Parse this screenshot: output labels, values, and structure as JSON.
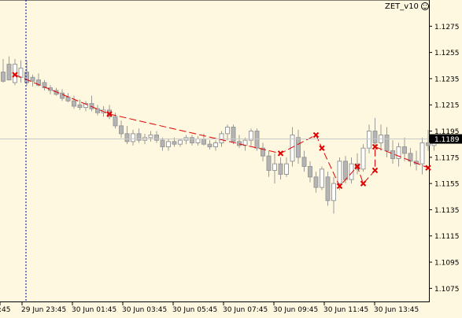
{
  "indicator": {
    "name": "ZET_v10",
    "icon": "smiley-icon"
  },
  "chart_data": {
    "type": "candlestick",
    "ylim": [
      1.1065,
      1.1295
    ],
    "y_ticks": [
      "1.1275",
      "1.1255",
      "1.1235",
      "1.1215",
      "1.1195",
      "1.1175",
      "1.1155",
      "1.1135",
      "1.1115",
      "1.1095",
      "1.1075"
    ],
    "current_price": "1.1189",
    "x_tick_labels": [
      ":45",
      "29 Jun 23:45",
      "30 Jun 01:45",
      "30 Jun 03:45",
      "30 Jun 05:45",
      "30 Jun 07:45",
      "30 Jun 09:45",
      "30 Jun 11:45",
      "30 Jun 13:45"
    ],
    "vertical_marker_index": 1,
    "candles": [
      {
        "o": 1.124,
        "h": 1.125,
        "l": 1.1232,
        "c": 1.1233
      },
      {
        "o": 1.1246,
        "h": 1.1252,
        "l": 1.1234,
        "c": 1.1234
      },
      {
        "o": 1.1232,
        "h": 1.125,
        "l": 1.123,
        "c": 1.1246
      },
      {
        "o": 1.1236,
        "h": 1.1249,
        "l": 1.1232,
        "c": 1.1243
      },
      {
        "o": 1.124,
        "h": 1.1249,
        "l": 1.123,
        "c": 1.1232
      },
      {
        "o": 1.1236,
        "h": 1.1238,
        "l": 1.1229,
        "c": 1.1233
      },
      {
        "o": 1.1234,
        "h": 1.1239,
        "l": 1.1229,
        "c": 1.123
      },
      {
        "o": 1.1232,
        "h": 1.1234,
        "l": 1.1226,
        "c": 1.1228
      },
      {
        "o": 1.1228,
        "h": 1.123,
        "l": 1.1223,
        "c": 1.1226
      },
      {
        "o": 1.1226,
        "h": 1.1228,
        "l": 1.1222,
        "c": 1.1223
      },
      {
        "o": 1.1224,
        "h": 1.1227,
        "l": 1.1218,
        "c": 1.122
      },
      {
        "o": 1.1221,
        "h": 1.1224,
        "l": 1.1217,
        "c": 1.1218
      },
      {
        "o": 1.1218,
        "h": 1.1222,
        "l": 1.1212,
        "c": 1.1214
      },
      {
        "o": 1.1215,
        "h": 1.1219,
        "l": 1.1211,
        "c": 1.1213
      },
      {
        "o": 1.1213,
        "h": 1.1218,
        "l": 1.121,
        "c": 1.1216
      },
      {
        "o": 1.1216,
        "h": 1.1222,
        "l": 1.121,
        "c": 1.1212
      },
      {
        "o": 1.1212,
        "h": 1.1215,
        "l": 1.1207,
        "c": 1.1209
      },
      {
        "o": 1.1209,
        "h": 1.1214,
        "l": 1.1206,
        "c": 1.1211
      },
      {
        "o": 1.1211,
        "h": 1.1215,
        "l": 1.1204,
        "c": 1.1206
      },
      {
        "o": 1.1206,
        "h": 1.1209,
        "l": 1.1197,
        "c": 1.1199
      },
      {
        "o": 1.1199,
        "h": 1.1203,
        "l": 1.119,
        "c": 1.1193
      },
      {
        "o": 1.1193,
        "h": 1.1199,
        "l": 1.1185,
        "c": 1.1187
      },
      {
        "o": 1.1187,
        "h": 1.1196,
        "l": 1.1184,
        "c": 1.1193
      },
      {
        "o": 1.1193,
        "h": 1.1197,
        "l": 1.1186,
        "c": 1.1188
      },
      {
        "o": 1.1188,
        "h": 1.1193,
        "l": 1.1185,
        "c": 1.119
      },
      {
        "o": 1.119,
        "h": 1.1195,
        "l": 1.1187,
        "c": 1.1192
      },
      {
        "o": 1.1192,
        "h": 1.1195,
        "l": 1.1186,
        "c": 1.1188
      },
      {
        "o": 1.1188,
        "h": 1.119,
        "l": 1.118,
        "c": 1.1183
      },
      {
        "o": 1.1183,
        "h": 1.1189,
        "l": 1.118,
        "c": 1.1187
      },
      {
        "o": 1.1187,
        "h": 1.119,
        "l": 1.1183,
        "c": 1.1185
      },
      {
        "o": 1.1185,
        "h": 1.1189,
        "l": 1.1183,
        "c": 1.1188
      },
      {
        "o": 1.1188,
        "h": 1.1192,
        "l": 1.1185,
        "c": 1.119
      },
      {
        "o": 1.119,
        "h": 1.1192,
        "l": 1.1184,
        "c": 1.1186
      },
      {
        "o": 1.1186,
        "h": 1.1191,
        "l": 1.1184,
        "c": 1.1189
      },
      {
        "o": 1.1189,
        "h": 1.1193,
        "l": 1.1184,
        "c": 1.1185
      },
      {
        "o": 1.1185,
        "h": 1.1188,
        "l": 1.1181,
        "c": 1.1183
      },
      {
        "o": 1.1183,
        "h": 1.1188,
        "l": 1.118,
        "c": 1.1186
      },
      {
        "o": 1.1186,
        "h": 1.1195,
        "l": 1.1183,
        "c": 1.1193
      },
      {
        "o": 1.1193,
        "h": 1.12,
        "l": 1.1188,
        "c": 1.1198
      },
      {
        "o": 1.1198,
        "h": 1.12,
        "l": 1.1185,
        "c": 1.1187
      },
      {
        "o": 1.1187,
        "h": 1.1192,
        "l": 1.1182,
        "c": 1.1184
      },
      {
        "o": 1.1184,
        "h": 1.119,
        "l": 1.118,
        "c": 1.1188
      },
      {
        "o": 1.1188,
        "h": 1.1197,
        "l": 1.1184,
        "c": 1.1195
      },
      {
        "o": 1.1195,
        "h": 1.1197,
        "l": 1.118,
        "c": 1.1182
      },
      {
        "o": 1.1182,
        "h": 1.1186,
        "l": 1.1172,
        "c": 1.1176
      },
      {
        "o": 1.1176,
        "h": 1.118,
        "l": 1.116,
        "c": 1.1165
      },
      {
        "o": 1.1165,
        "h": 1.1178,
        "l": 1.1155,
        "c": 1.117
      },
      {
        "o": 1.117,
        "h": 1.1175,
        "l": 1.1158,
        "c": 1.1162
      },
      {
        "o": 1.1162,
        "h": 1.1175,
        "l": 1.116,
        "c": 1.117
      },
      {
        "o": 1.1172,
        "h": 1.1198,
        "l": 1.1168,
        "c": 1.1192
      },
      {
        "o": 1.119,
        "h": 1.1196,
        "l": 1.117,
        "c": 1.1175
      },
      {
        "o": 1.1175,
        "h": 1.118,
        "l": 1.1164,
        "c": 1.1168
      },
      {
        "o": 1.1168,
        "h": 1.1172,
        "l": 1.1156,
        "c": 1.116
      },
      {
        "o": 1.116,
        "h": 1.1164,
        "l": 1.1148,
        "c": 1.1152
      },
      {
        "o": 1.1152,
        "h": 1.1168,
        "l": 1.115,
        "c": 1.1166
      },
      {
        "o": 1.116,
        "h": 1.1164,
        "l": 1.1138,
        "c": 1.1142
      },
      {
        "o": 1.1142,
        "h": 1.116,
        "l": 1.1132,
        "c": 1.1155
      },
      {
        "o": 1.1155,
        "h": 1.1175,
        "l": 1.115,
        "c": 1.1172
      },
      {
        "o": 1.1172,
        "h": 1.1176,
        "l": 1.1155,
        "c": 1.1158
      },
      {
        "o": 1.1158,
        "h": 1.1175,
        "l": 1.1155,
        "c": 1.117
      },
      {
        "o": 1.117,
        "h": 1.1178,
        "l": 1.1162,
        "c": 1.1166
      },
      {
        "o": 1.1166,
        "h": 1.1185,
        "l": 1.1164,
        "c": 1.1182
      },
      {
        "o": 1.1182,
        "h": 1.12,
        "l": 1.1178,
        "c": 1.1195
      },
      {
        "o": 1.1195,
        "h": 1.1205,
        "l": 1.1182,
        "c": 1.1186
      },
      {
        "o": 1.1186,
        "h": 1.12,
        "l": 1.118,
        "c": 1.1192
      },
      {
        "o": 1.1192,
        "h": 1.1198,
        "l": 1.1175,
        "c": 1.118
      },
      {
        "o": 1.118,
        "h": 1.1188,
        "l": 1.117,
        "c": 1.1174
      },
      {
        "o": 1.1174,
        "h": 1.1186,
        "l": 1.1168,
        "c": 1.1183
      },
      {
        "o": 1.1183,
        "h": 1.119,
        "l": 1.1172,
        "c": 1.1178
      },
      {
        "o": 1.1178,
        "h": 1.1182,
        "l": 1.1168,
        "c": 1.1172
      },
      {
        "o": 1.1172,
        "h": 1.118,
        "l": 1.1165,
        "c": 1.117
      },
      {
        "o": 1.117,
        "h": 1.119,
        "l": 1.1162,
        "c": 1.1186
      },
      {
        "o": 1.1186,
        "h": 1.1196,
        "l": 1.118,
        "c": 1.1184
      },
      {
        "o": 1.1184,
        "h": 1.1192,
        "l": 1.118,
        "c": 1.1189
      }
    ],
    "zigzag_points": [
      {
        "i": 2,
        "y": 1.1238
      },
      {
        "i": 18,
        "y": 1.1208
      },
      {
        "i": 47,
        "y": 1.1178
      },
      {
        "i": 53,
        "y": 1.1192
      },
      {
        "i": 54,
        "y": 1.1182
      },
      {
        "i": 57,
        "y": 1.1153
      },
      {
        "i": 60,
        "y": 1.1168
      },
      {
        "i": 61,
        "y": 1.1155
      },
      {
        "i": 63,
        "y": 1.1165
      },
      {
        "i": 63,
        "y": 1.1183
      },
      {
        "i": 72,
        "y": 1.1167
      }
    ]
  }
}
